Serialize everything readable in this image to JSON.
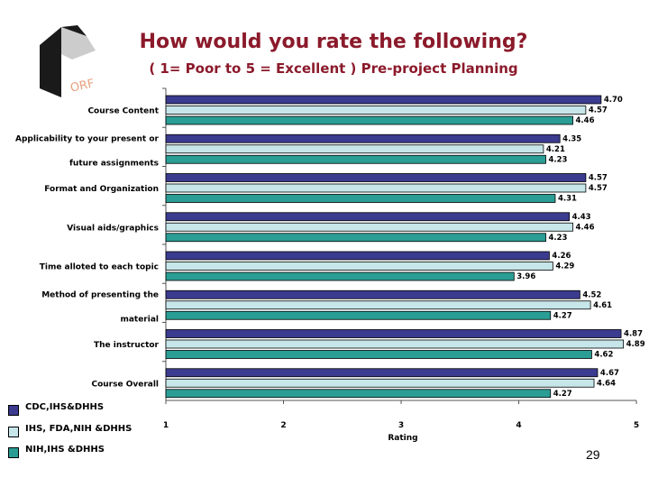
{
  "header": {
    "title": "How would you rate the following?",
    "subtitle": "( 1= Poor to 5 = Excellent ) Pre-project Planning",
    "logo_text": "ORF"
  },
  "page_number": "29",
  "colors": {
    "title": "#8b1a2b",
    "series_1": "#3b3b8f",
    "series_2": "#c6e6ea",
    "series_3": "#2a9d94"
  },
  "chart_data": {
    "type": "bar",
    "orientation": "horizontal",
    "xlabel": "Rating",
    "xlim": [
      1,
      5
    ],
    "xticks": [
      "1",
      "2",
      "3",
      "4",
      "5"
    ],
    "legend_position": "bottom-left",
    "categories": [
      [
        "Course Content"
      ],
      [
        "Applicability to your present or",
        "future assignments"
      ],
      [
        "Format and Organization"
      ],
      [
        "Visual aids/graphics"
      ],
      [
        "Time alloted to each topic"
      ],
      [
        "Method of presenting the",
        "material"
      ],
      [
        "The instructor"
      ],
      [
        "Course Overall"
      ]
    ],
    "series": [
      {
        "name": "CDC,IHS&DHHS",
        "values": [
          4.7,
          4.35,
          4.57,
          4.43,
          4.26,
          4.52,
          4.87,
          4.67
        ],
        "labels": [
          "4.70",
          "4.35",
          "4.57",
          "4.43",
          "4.26",
          "4.52",
          "4.87",
          "4.67"
        ]
      },
      {
        "name": "IHS, FDA,NIH &DHHS",
        "values": [
          4.57,
          4.21,
          4.57,
          4.46,
          4.29,
          4.61,
          4.89,
          4.64
        ],
        "labels": [
          "4.57",
          "4.21",
          "4.57",
          "4.46",
          "4.29",
          "4.61",
          "4.89",
          "4.64"
        ]
      },
      {
        "name": "NIH,IHS &DHHS",
        "values": [
          4.46,
          4.23,
          4.31,
          4.23,
          3.96,
          4.27,
          4.62,
          4.27
        ],
        "labels": [
          "4.46",
          "4.23",
          "4.31",
          "4.23",
          "3.96",
          "4.27",
          "4.62",
          "4.27"
        ]
      }
    ]
  }
}
